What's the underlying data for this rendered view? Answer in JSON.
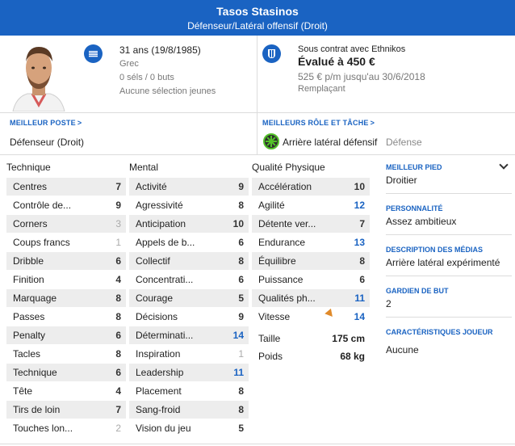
{
  "header": {
    "name": "Tasos Stasinos",
    "position": "Défenseur/Latéral offensif (Droit)"
  },
  "personal": {
    "age": "31 ans (19/8/1985)",
    "nationality": "Grec",
    "caps": "0 séls / 0 buts",
    "youth": "Aucune sélection jeunes",
    "flag_icon": "greece-flag-icon"
  },
  "contract": {
    "status": "Sous contrat avec Ethnikos",
    "value": "Évalué à 450 €",
    "wage": "525 € p/m jusqu'au 30/6/2018",
    "role": "Remplaçant",
    "club_icon": "club-crest-icon"
  },
  "best_position": {
    "label": "MEILLEUR POSTE",
    "value": "Défenseur (Droit)"
  },
  "best_role": {
    "label": "MEILLEURS RÔLE ET TÂCHE",
    "role": "Arrière latéral défensif",
    "duty": "Défense"
  },
  "columns": {
    "technique": "Technique",
    "mental": "Mental",
    "physical": "Qualité Physique"
  },
  "technique": [
    {
      "label": "Centres",
      "value": "7"
    },
    {
      "label": "Contrôle de...",
      "value": "9"
    },
    {
      "label": "Corners",
      "value": "3"
    },
    {
      "label": "Coups francs",
      "value": "1"
    },
    {
      "label": "Dribble",
      "value": "6"
    },
    {
      "label": "Finition",
      "value": "4"
    },
    {
      "label": "Marquage",
      "value": "8"
    },
    {
      "label": "Passes",
      "value": "8"
    },
    {
      "label": "Penalty",
      "value": "6"
    },
    {
      "label": "Tacles",
      "value": "8"
    },
    {
      "label": "Technique",
      "value": "6"
    },
    {
      "label": "Tête",
      "value": "4"
    },
    {
      "label": "Tirs de loin",
      "value": "7"
    },
    {
      "label": "Touches lon...",
      "value": "2"
    }
  ],
  "mental": [
    {
      "label": "Activité",
      "value": "9"
    },
    {
      "label": "Agressivité",
      "value": "8"
    },
    {
      "label": "Anticipation",
      "value": "10"
    },
    {
      "label": "Appels de b...",
      "value": "6"
    },
    {
      "label": "Collectif",
      "value": "8"
    },
    {
      "label": "Concentrati...",
      "value": "6"
    },
    {
      "label": "Courage",
      "value": "5"
    },
    {
      "label": "Décisions",
      "value": "9"
    },
    {
      "label": "Déterminati...",
      "value": "14"
    },
    {
      "label": "Inspiration",
      "value": "1"
    },
    {
      "label": "Leadership",
      "value": "11"
    },
    {
      "label": "Placement",
      "value": "8"
    },
    {
      "label": "Sang-froid",
      "value": "8"
    },
    {
      "label": "Vision du jeu",
      "value": "5"
    }
  ],
  "physical": [
    {
      "label": "Accélération",
      "value": "10"
    },
    {
      "label": "Agilité",
      "value": "12"
    },
    {
      "label": "Détente ver...",
      "value": "7"
    },
    {
      "label": "Endurance",
      "value": "13"
    },
    {
      "label": "Équilibre",
      "value": "8"
    },
    {
      "label": "Puissance",
      "value": "6"
    },
    {
      "label": "Qualités ph...",
      "value": "11"
    },
    {
      "label": "Vitesse",
      "value": "14"
    }
  ],
  "measures": {
    "height_label": "Taille",
    "height": "175 cm",
    "weight_label": "Poids",
    "weight": "68 kg"
  },
  "side": {
    "foot_label": "MEILLEUR PIED",
    "foot": "Droitier",
    "personality_label": "PERSONNALITÉ",
    "personality": "Assez ambitieux",
    "media_label": "DESCRIPTION DES MÉDIAS",
    "media": "Arrière latéral expérimenté",
    "gk_label": "GARDIEN DE BUT",
    "gk": "2",
    "traits_label": "CARACTÉRISTIQUES JOUEUR",
    "traits": "Aucune"
  },
  "colors": {
    "accent": "#1a63c2",
    "high_attr": "#1a63c2",
    "low_attr": "#aaaaaa",
    "role_ring": "#53c229"
  }
}
